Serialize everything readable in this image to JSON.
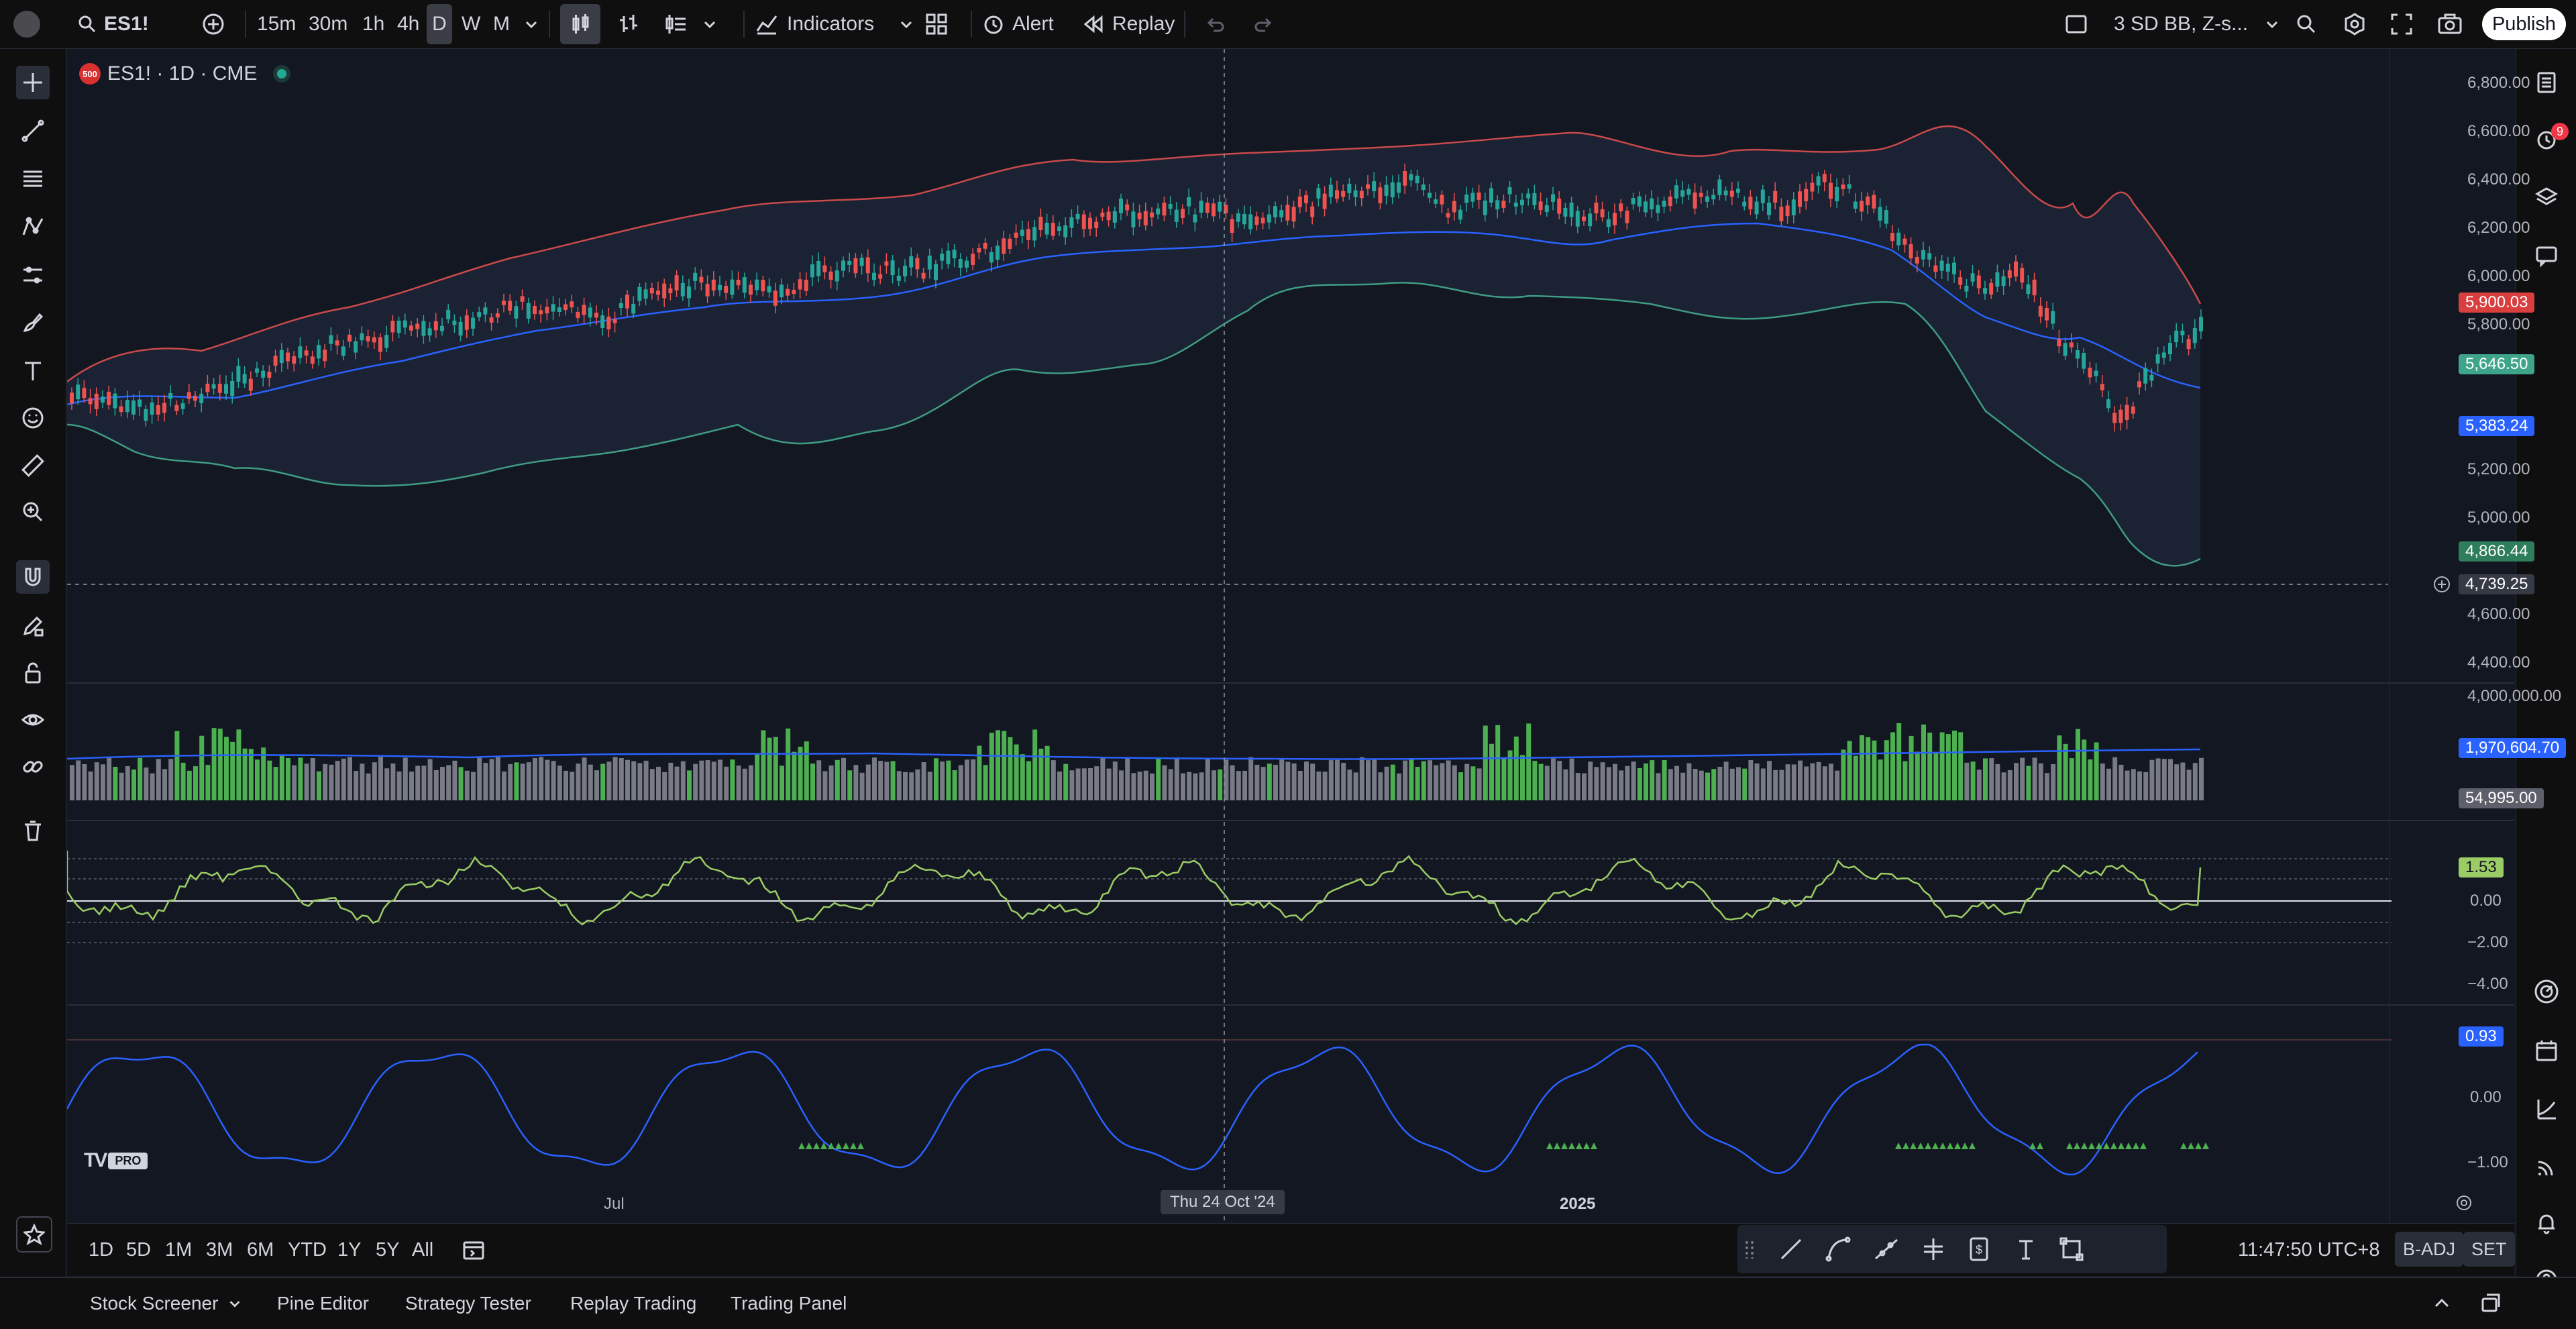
{
  "header": {
    "symbol": "ES1!",
    "intervals": [
      "15m",
      "30m",
      "1h",
      "4h",
      "D",
      "W",
      "M"
    ],
    "active_interval": "D",
    "indicators_label": "Indicators",
    "alert_label": "Alert",
    "replay_label": "Replay",
    "layout_name": "3 SD BB, Z-s...",
    "publish_label": "Publish"
  },
  "legend": {
    "badge": "500",
    "title": "ES1! · 1D · CME"
  },
  "price_axis": {
    "labels": [
      "6,800.00",
      "6,600.00",
      "6,400.00",
      "6,200.00",
      "6,000.00",
      "5,800.00",
      "5,200.00",
      "5,000.00",
      "4,600.00",
      "4,400.00"
    ],
    "tags": {
      "upper": "5,900.03",
      "close": "5,646.50",
      "basis": "5,383.24",
      "lower": "4,866.44",
      "crosshair": "4,739.25"
    },
    "tag_colors": {
      "upper": "#d93f3f",
      "close": "#3fa58a",
      "basis": "#2962ff",
      "lower": "#2e7d5b",
      "crosshair": "#363a45"
    }
  },
  "volume_axis": {
    "max_label": "4,000,000.00",
    "ma_tag": "1,970,604.70",
    "vol_tag": "54,995.00"
  },
  "osc_axis": {
    "value_tag": "1.53",
    "labels": [
      "0.00",
      "−2.00",
      "−4.00"
    ]
  },
  "osc2_axis": {
    "value_tag": "0.93",
    "labels": [
      "0.00",
      "−1.00"
    ]
  },
  "time_axis": {
    "jul": "Jul",
    "crosshair_date": "Thu 24 Oct '24",
    "year": "2025"
  },
  "watermark": "PRO",
  "bottom": {
    "ranges": [
      "1D",
      "5D",
      "1M",
      "3M",
      "6M",
      "YTD",
      "1Y",
      "5Y",
      "All"
    ],
    "clock": "11:47:50 UTC+8",
    "badj": "B-ADJ",
    "set": "SET"
  },
  "panels": [
    "Stock Screener",
    "Pine Editor",
    "Strategy Tester",
    "Replay Trading",
    "Trading Panel"
  ],
  "notifications_count": "9",
  "colors": {
    "up": "#26a69a",
    "down": "#ef5350",
    "vol_up": "#4caf50",
    "vol_down": "#787b86",
    "basis": "#2962ff",
    "osc": "#9ccc65"
  }
}
